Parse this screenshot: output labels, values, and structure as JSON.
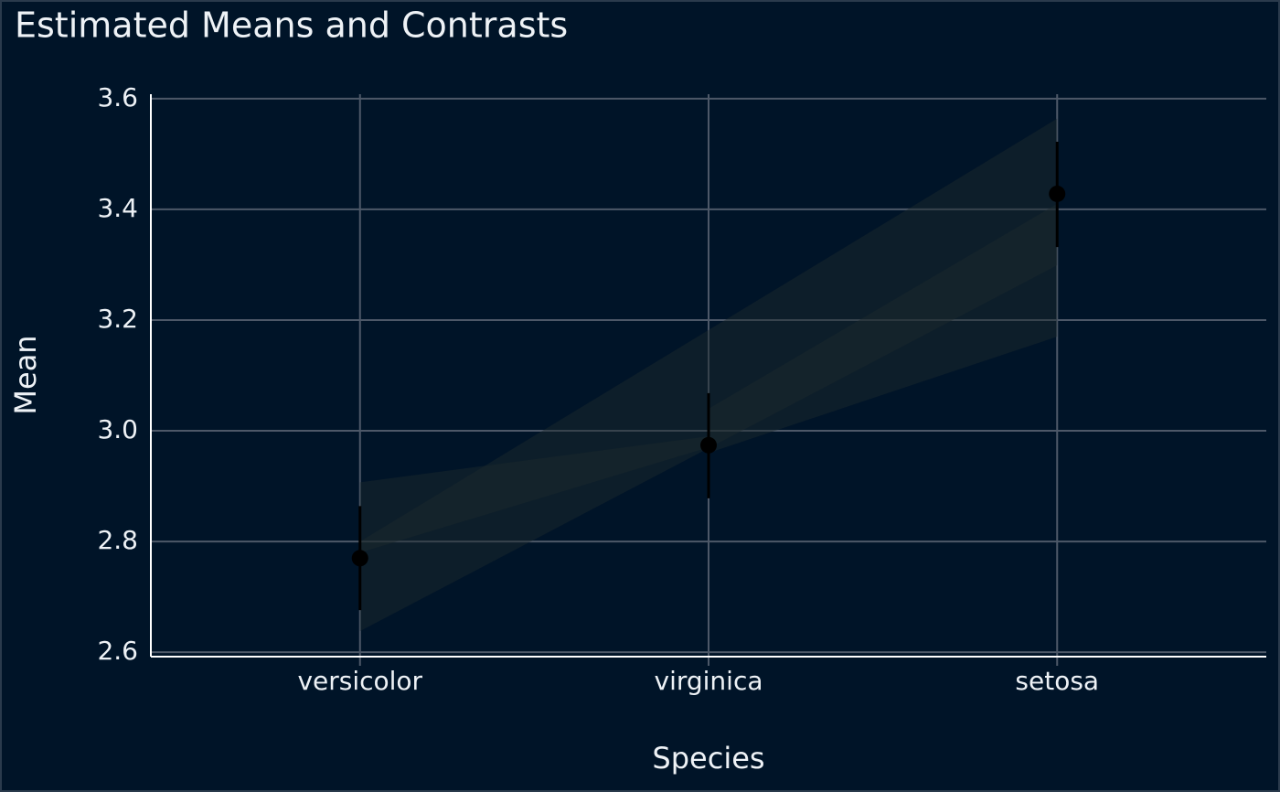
{
  "chart_data": {
    "type": "pointrange",
    "title": "Estimated Means and Contrasts",
    "x_label": "Species",
    "y_label": "Mean",
    "categories": [
      "versicolor",
      "virginica",
      "setosa"
    ],
    "series": [
      {
        "name": "Mean",
        "color": "#000000",
        "values": [
          2.77,
          2.974,
          3.428
        ],
        "lower": [
          2.676,
          2.878,
          3.332
        ],
        "upper": [
          2.864,
          3.068,
          3.522
        ]
      }
    ],
    "contrasts": [
      {
        "from": "versicolor",
        "to": "setosa",
        "lower": [
          2.638,
          3.299
        ],
        "upper": [
          2.8,
          3.564
        ]
      },
      {
        "from": "versicolor",
        "to": "virginica",
        "lower": [
          2.78,
          2.97
        ],
        "upper": [
          2.907,
          2.99
        ]
      },
      {
        "from": "virginica",
        "to": "setosa",
        "lower": [
          2.96,
          3.17
        ],
        "upper": [
          3.04,
          3.41
        ]
      }
    ],
    "ribbon_color": "#1c2a2c",
    "ylim": [
      2.592,
      3.608
    ],
    "yticks": [
      {
        "value": 2.6,
        "label": "2.6"
      },
      {
        "value": 2.8,
        "label": "2.8"
      },
      {
        "value": 3.0,
        "label": "3.0"
      },
      {
        "value": 3.2,
        "label": "3.2"
      },
      {
        "value": 3.4,
        "label": "3.4"
      },
      {
        "value": 3.6,
        "label": "3.6"
      }
    ],
    "grid": true
  }
}
